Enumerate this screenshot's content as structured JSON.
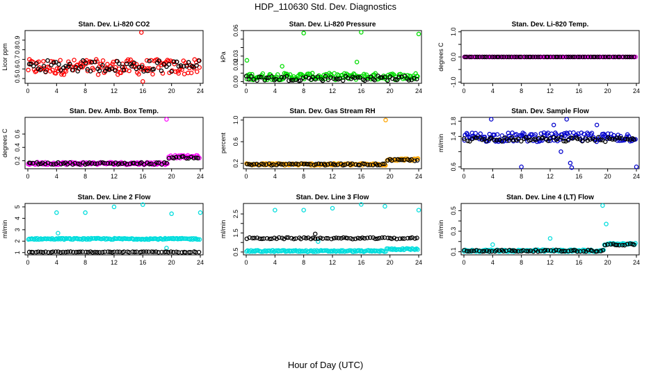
{
  "title": "HDP_110630  Std. Dev. Diagnostics",
  "xlabel": "Hour of Day (UTC)",
  "chart_data": [
    {
      "type": "scatter",
      "title": "Stan. Dev. Li-820 CO2",
      "ylabel": "Licor ppm",
      "xlim": [
        0,
        24
      ],
      "ylim": [
        0.45,
        1.0
      ],
      "yticks": [
        0.5,
        0.6,
        0.7,
        0.8,
        0.9
      ],
      "ytick_labels": [
        "0.5",
        "0.6",
        "0.7",
        "0.8",
        "0.9"
      ],
      "xticks": [
        0,
        4,
        8,
        12,
        16,
        20,
        24
      ],
      "xtick_labels": [
        "0",
        "4",
        "8",
        "12",
        "16",
        "20",
        "24"
      ],
      "series": [
        {
          "color": "#ff0000",
          "base": 0.62,
          "spread": 0.08,
          "outliers": [
            [
              15.8,
              0.98
            ],
            [
              16.0,
              0.47
            ]
          ],
          "symbol": "circle"
        },
        {
          "color": "#000000",
          "base": 0.63,
          "spread": 0.06,
          "outliers": [],
          "symbol": "circle"
        }
      ]
    },
    {
      "type": "scatter",
      "title": "Stan. Dev. Li-820 Pressure",
      "ylabel": "kPa",
      "xlim": [
        0,
        24
      ],
      "ylim": [
        -0.002,
        0.06
      ],
      "yticks": [
        0.0,
        0.01,
        0.02,
        0.03,
        0.04,
        0.05,
        0.06
      ],
      "ytick_labels": [
        "0.00",
        "",
        "0.02",
        "0.03",
        "",
        "",
        "0.06"
      ],
      "xticks": [
        0,
        4,
        8,
        12,
        16,
        20,
        24
      ],
      "xtick_labels": [
        "0",
        "4",
        "8",
        "12",
        "16",
        "20",
        "24"
      ],
      "series": [
        {
          "color": "#00dd00",
          "base": 0.006,
          "spread": 0.004,
          "outliers": [
            [
              8,
              0.057
            ],
            [
              16,
              0.058
            ],
            [
              24,
              0.056
            ],
            [
              0.1,
              0.025
            ],
            [
              5,
              0.018
            ],
            [
              15.4,
              0.023
            ]
          ],
          "symbol": "star"
        },
        {
          "color": "#000000",
          "base": 0.004,
          "spread": 0.003,
          "outliers": [],
          "symbol": "circle"
        }
      ]
    },
    {
      "type": "scatter",
      "title": "Stan. Dev. Li-820 Temp.",
      "ylabel": "degrees C",
      "xlim": [
        0,
        24
      ],
      "ylim": [
        -1.05,
        1.05
      ],
      "yticks": [
        -1.0,
        -0.5,
        0.0,
        0.5,
        1.0
      ],
      "ytick_labels": [
        "-1.0",
        "",
        "0.0",
        "",
        "1.0"
      ],
      "xticks": [
        0,
        4,
        8,
        12,
        16,
        20,
        24
      ],
      "xtick_labels": [
        "0",
        "4",
        "8",
        "12",
        "16",
        "20",
        "24"
      ],
      "series": [
        {
          "color": "#ff00ff",
          "base": 0.0,
          "spread": 0.0,
          "outliers": [],
          "symbol": "circle"
        },
        {
          "color": "#000000",
          "base": 0.0,
          "spread": 0.0,
          "outliers": [],
          "symbol": "circle"
        }
      ]
    },
    {
      "type": "scatter",
      "title": "Stan. Dev. Amb. Box Temp.",
      "ylabel": "degrees C",
      "xlim": [
        0,
        24
      ],
      "ylim": [
        0.08,
        0.85
      ],
      "yticks": [
        0.2,
        0.4,
        0.6
      ],
      "ytick_labels": [
        "0.2",
        "0.4",
        "0.6"
      ],
      "xticks": [
        0,
        4,
        8,
        12,
        16,
        20,
        24
      ],
      "xtick_labels": [
        "0",
        "4",
        "8",
        "12",
        "16",
        "20",
        "24"
      ],
      "series": [
        {
          "color": "#ff00ff",
          "base": 0.16,
          "spread": 0.02,
          "step": [
            19.5,
            0.26
          ],
          "outliers": [
            [
              19.3,
              0.82
            ]
          ],
          "symbol": "circle"
        },
        {
          "color": "#000000",
          "base": 0.16,
          "spread": 0.015,
          "step": [
            19.5,
            0.25
          ],
          "outliers": [],
          "symbol": "circle"
        }
      ]
    },
    {
      "type": "scatter",
      "title": "Stan. Dev. Gas Stream RH",
      "ylabel": "percent",
      "xlim": [
        0,
        24
      ],
      "ylim": [
        0.1,
        1.05
      ],
      "yticks": [
        0.2,
        0.6,
        1.0
      ],
      "ytick_labels": [
        "0.2",
        "0.6",
        "1.0"
      ],
      "xticks": [
        0,
        4,
        8,
        12,
        16,
        20,
        24
      ],
      "xtick_labels": [
        "0",
        "4",
        "8",
        "12",
        "16",
        "20",
        "24"
      ],
      "series": [
        {
          "color": "#ffa500",
          "base": 0.18,
          "spread": 0.02,
          "step": [
            19.5,
            0.27
          ],
          "outliers": [
            [
              19.4,
              1.0
            ]
          ],
          "symbol": "circle"
        },
        {
          "color": "#000000",
          "base": 0.18,
          "spread": 0.015,
          "step": [
            19.5,
            0.26
          ],
          "outliers": [],
          "symbol": "circle"
        }
      ]
    },
    {
      "type": "scatter",
      "title": "Stan. Dev. Sample Flow",
      "ylabel": "ml/min",
      "xlim": [
        0,
        24
      ],
      "ylim": [
        0.55,
        1.9
      ],
      "yticks": [
        0.6,
        1.0,
        1.4,
        1.8
      ],
      "ytick_labels": [
        "0.6",
        "",
        "1.4",
        "1.8"
      ],
      "xticks": [
        0,
        4,
        8,
        12,
        16,
        20,
        24
      ],
      "xtick_labels": [
        "0",
        "4",
        "8",
        "12",
        "16",
        "20",
        "24"
      ],
      "series": [
        {
          "color": "#0000cc",
          "base": 1.38,
          "spread": 0.12,
          "outliers": [
            [
              8,
              0.6
            ],
            [
              15,
              0.58
            ],
            [
              14.8,
              0.7
            ],
            [
              24,
              0.6
            ],
            [
              12.5,
              1.7
            ],
            [
              14.3,
              1.85
            ],
            [
              3.8,
              1.85
            ],
            [
              18.5,
              1.7
            ],
            [
              13.5,
              1.0
            ]
          ],
          "symbol": "circle"
        },
        {
          "color": "#000000",
          "base": 1.32,
          "spread": 0.06,
          "outliers": [],
          "symbol": "circle"
        }
      ]
    },
    {
      "type": "scatter",
      "title": "Stan. Dev. Line 2 Flow",
      "ylabel": "ml/min",
      "xlim": [
        0,
        24
      ],
      "ylim": [
        0.8,
        5.3
      ],
      "yticks": [
        1,
        2,
        3,
        4,
        5
      ],
      "ytick_labels": [
        "1",
        "2",
        "3",
        "4",
        "5"
      ],
      "xticks": [
        0,
        4,
        8,
        12,
        16,
        20,
        24
      ],
      "xtick_labels": [
        "0",
        "4",
        "8",
        "12",
        "16",
        "20",
        "24"
      ],
      "series": [
        {
          "color": "#00dddd",
          "base": 2.2,
          "spread": 0.06,
          "outliers": [
            [
              4,
              4.5
            ],
            [
              8,
              4.5
            ],
            [
              12,
              5.0
            ],
            [
              16,
              5.2
            ],
            [
              20,
              4.4
            ],
            [
              24,
              4.5
            ],
            [
              19.3,
              1.4
            ],
            [
              4.2,
              2.7
            ]
          ],
          "symbol": "circle"
        },
        {
          "color": "#000000",
          "base": 1.05,
          "spread": 0.03,
          "outliers": [],
          "symbol": "circle"
        }
      ]
    },
    {
      "type": "scatter",
      "title": "Stan. Dev. Line 3 Flow",
      "ylabel": "ml/min",
      "xlim": [
        0,
        24
      ],
      "ylim": [
        0.35,
        3.05
      ],
      "yticks": [
        0.5,
        1.0,
        1.5,
        2.0,
        2.5
      ],
      "ytick_labels": [
        "0.5",
        "",
        "1.5",
        "",
        "2.5"
      ],
      "xticks": [
        0,
        4,
        8,
        12,
        16,
        20,
        24
      ],
      "xtick_labels": [
        "0",
        "4",
        "8",
        "12",
        "16",
        "20",
        "24"
      ],
      "series": [
        {
          "color": "#00dddd",
          "base": 0.55,
          "spread": 0.04,
          "step": [
            19.5,
            0.65
          ],
          "outliers": [
            [
              4,
              2.7
            ],
            [
              8,
              2.7
            ],
            [
              12,
              2.8
            ],
            [
              16,
              3.0
            ],
            [
              19.3,
              2.9
            ],
            [
              24,
              2.7
            ],
            [
              10,
              1.05
            ]
          ],
          "symbol": "circle"
        },
        {
          "color": "#000000",
          "base": 1.22,
          "spread": 0.04,
          "outliers": [
            [
              9.6,
              1.45
            ]
          ],
          "symbol": "circle"
        }
      ]
    },
    {
      "type": "scatter",
      "title": "Stan. Dev. Line 4 (LT) Flow",
      "ylabel": "ml/min",
      "xlim": [
        0,
        24
      ],
      "ylim": [
        0.07,
        0.57
      ],
      "yticks": [
        0.1,
        0.2,
        0.3,
        0.4,
        0.5
      ],
      "ytick_labels": [
        "0.1",
        "",
        "0.3",
        "",
        "0.5"
      ],
      "xticks": [
        0,
        4,
        8,
        12,
        16,
        20,
        24
      ],
      "xtick_labels": [
        "0",
        "4",
        "8",
        "12",
        "16",
        "20",
        "24"
      ],
      "series": [
        {
          "color": "#00dddd",
          "base": 0.11,
          "spread": 0.01,
          "step": [
            19.5,
            0.175
          ],
          "outliers": [
            [
              19.3,
              0.55
            ],
            [
              19.8,
              0.37
            ],
            [
              12,
              0.23
            ],
            [
              4,
              0.17
            ]
          ],
          "symbol": "circle"
        },
        {
          "color": "#000000",
          "base": 0.11,
          "spread": 0.008,
          "step": [
            19.5,
            0.17
          ],
          "outliers": [],
          "symbol": "circle"
        }
      ]
    }
  ]
}
